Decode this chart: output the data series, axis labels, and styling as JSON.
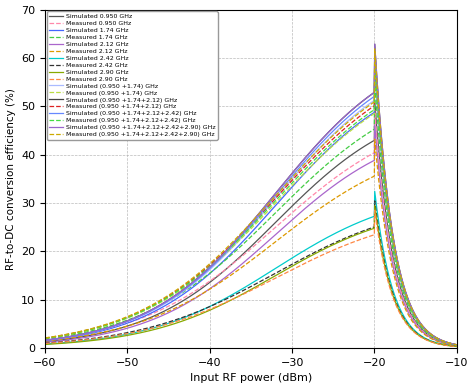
{
  "title": "",
  "xlabel": "Input RF power (dBm)",
  "ylabel": "RF-to-DC conversion efficiency (%)",
  "xlim": [
    -60,
    -10
  ],
  "ylim": [
    0,
    70
  ],
  "xticks": [
    -60,
    -50,
    -40,
    -30,
    -20,
    -10
  ],
  "yticks": [
    0,
    10,
    20,
    30,
    40,
    50,
    60,
    70
  ],
  "series": [
    {
      "label": "Simulated 0.950 GHz",
      "color": "#555555",
      "linestyle": "-",
      "peak": 52,
      "peak_x": -20,
      "rise": 0.13,
      "fall": 0.45
    },
    {
      "label": "Measured 0.950 GHz",
      "color": "#ff88aa",
      "linestyle": "--",
      "peak": 50,
      "peak_x": -20,
      "rise": 0.12,
      "fall": 0.45
    },
    {
      "label": "Simulated 1.74 GHz",
      "color": "#4466ff",
      "linestyle": "-",
      "peak": 59,
      "peak_x": -20,
      "rise": 0.13,
      "fall": 0.45
    },
    {
      "label": "Measured 1.74 GHz",
      "color": "#44cc44",
      "linestyle": "--",
      "peak": 56,
      "peak_x": -20,
      "rise": 0.12,
      "fall": 0.45
    },
    {
      "label": "Simulated 2.12 GHz",
      "color": "#aa66cc",
      "linestyle": "-",
      "peak": 47,
      "peak_x": -20,
      "rise": 0.13,
      "fall": 0.45
    },
    {
      "label": "Measured 2.12 GHz",
      "color": "#dd9900",
      "linestyle": "--",
      "peak": 44,
      "peak_x": -20,
      "rise": 0.12,
      "fall": 0.45
    },
    {
      "label": "Simulated 2.42 GHz",
      "color": "#00cccc",
      "linestyle": "-",
      "peak": 33,
      "peak_x": -20,
      "rise": 0.13,
      "fall": 0.45
    },
    {
      "label": "Measured 2.42 GHz",
      "color": "#333333",
      "linestyle": "--",
      "peak": 31,
      "peak_x": -20,
      "rise": 0.12,
      "fall": 0.45
    },
    {
      "label": "Simulated 2.90 GHz",
      "color": "#88aa00",
      "linestyle": "-",
      "peak": 30,
      "peak_x": -20,
      "rise": 0.13,
      "fall": 0.45
    },
    {
      "label": "Measured 2.90 GHz",
      "color": "#ff8844",
      "linestyle": "--",
      "peak": 29,
      "peak_x": -20,
      "rise": 0.12,
      "fall": 0.45
    },
    {
      "label": "Simulated (0.950 +1.74) GHz",
      "color": "#aabbff",
      "linestyle": "-",
      "peak": 62,
      "peak_x": -20,
      "rise": 0.13,
      "fall": 0.45
    },
    {
      "label": "Measured (0.950 +1.74) GHz",
      "color": "#bbdd44",
      "linestyle": "--",
      "peak": 60,
      "peak_x": -20,
      "rise": 0.12,
      "fall": 0.45
    },
    {
      "label": "Simulated (0.950 +1.74+2.12) GHz",
      "color": "#444444",
      "linestyle": "-",
      "peak": 64,
      "peak_x": -20,
      "rise": 0.13,
      "fall": 0.45
    },
    {
      "label": "Measured (0.950 +1.74+2.12) GHz",
      "color": "#dd2222",
      "linestyle": "--",
      "peak": 62,
      "peak_x": -20,
      "rise": 0.12,
      "fall": 0.45
    },
    {
      "label": "Simulated (0.950 +1.74+2.12+2.42) GHz",
      "color": "#6688ff",
      "linestyle": "-",
      "peak": 63,
      "peak_x": -20,
      "rise": 0.13,
      "fall": 0.45
    },
    {
      "label": "Measured (0.950 +1.74+2.12+2.42) GHz",
      "color": "#44dd44",
      "linestyle": "--",
      "peak": 61,
      "peak_x": -20,
      "rise": 0.12,
      "fall": 0.45
    },
    {
      "label": "Simulated (0.950 +1.74+2.12+2.42+2.90) GHz",
      "color": "#9966cc",
      "linestyle": "-",
      "peak": 64,
      "peak_x": -20,
      "rise": 0.13,
      "fall": 0.45
    },
    {
      "label": "Measured (0.950 +1.74+2.12+2.42+2.90) GHz",
      "color": "#ccaa00",
      "linestyle": "--",
      "peak": 63,
      "peak_x": -20,
      "rise": 0.12,
      "fall": 0.45
    }
  ]
}
